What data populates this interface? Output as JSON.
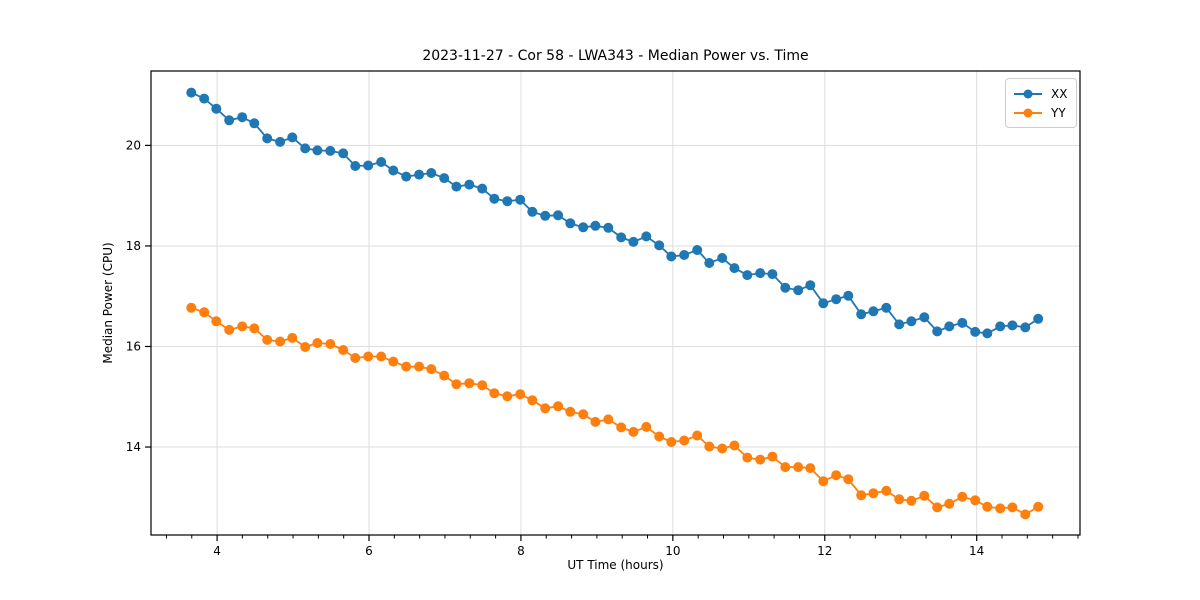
{
  "chart_data": {
    "type": "line",
    "title": "2023-11-27 - Cor 58 - LWA343 - Median Power vs. Time",
    "xlabel": "UT Time (hours)",
    "ylabel": "Median Power (CPU)",
    "x": [
      3.66,
      3.83,
      3.99,
      4.16,
      4.33,
      4.49,
      4.66,
      4.83,
      4.99,
      5.16,
      5.32,
      5.49,
      5.66,
      5.82,
      5.99,
      6.16,
      6.32,
      6.49,
      6.66,
      6.82,
      6.99,
      7.15,
      7.32,
      7.49,
      7.65,
      7.82,
      7.99,
      8.15,
      8.32,
      8.49,
      8.65,
      8.82,
      8.98,
      9.15,
      9.32,
      9.48,
      9.65,
      9.82,
      9.98,
      10.15,
      10.32,
      10.48,
      10.65,
      10.81,
      10.98,
      11.15,
      11.31,
      11.48,
      11.65,
      11.81,
      11.98,
      12.15,
      12.31,
      12.48,
      12.64,
      12.81,
      12.98,
      13.14,
      13.31,
      13.48,
      13.64,
      13.81,
      13.98,
      14.14,
      14.31,
      14.47,
      14.64,
      14.81
    ],
    "series": [
      {
        "name": "XX",
        "color": "#1f77b4",
        "values": [
          21.05,
          20.93,
          20.73,
          20.5,
          20.56,
          20.44,
          20.14,
          20.07,
          20.16,
          19.94,
          19.9,
          19.89,
          19.84,
          19.59,
          19.6,
          19.67,
          19.5,
          19.38,
          19.42,
          19.45,
          19.35,
          19.18,
          19.22,
          19.14,
          18.94,
          18.89,
          18.92,
          18.68,
          18.6,
          18.61,
          18.45,
          18.37,
          18.4,
          18.36,
          18.17,
          18.08,
          18.19,
          18.01,
          17.79,
          17.82,
          17.92,
          17.66,
          17.76,
          17.56,
          17.42,
          17.46,
          17.44,
          17.17,
          17.12,
          17.22,
          16.86,
          16.94,
          17.01,
          16.64,
          16.7,
          16.77,
          16.44,
          16.5,
          16.58,
          16.3,
          16.4,
          16.47,
          16.29,
          16.26,
          16.4,
          16.42,
          16.38,
          16.55
        ]
      },
      {
        "name": "YY",
        "color": "#ff7f0e",
        "values": [
          16.77,
          16.68,
          16.5,
          16.33,
          16.4,
          16.36,
          16.13,
          16.1,
          16.17,
          15.99,
          16.07,
          16.05,
          15.93,
          15.77,
          15.8,
          15.8,
          15.7,
          15.6,
          15.6,
          15.55,
          15.42,
          15.25,
          15.27,
          15.23,
          15.07,
          15.01,
          15.05,
          14.93,
          14.77,
          14.81,
          14.7,
          14.65,
          14.5,
          14.55,
          14.39,
          14.3,
          14.4,
          14.21,
          14.1,
          14.13,
          14.23,
          14.01,
          13.97,
          14.03,
          13.79,
          13.75,
          13.81,
          13.6,
          13.6,
          13.58,
          13.32,
          13.44,
          13.36,
          13.04,
          13.08,
          13.13,
          12.96,
          12.93,
          13.03,
          12.8,
          12.87,
          13.01,
          12.94,
          12.81,
          12.78,
          12.8,
          12.66,
          12.81
        ]
      }
    ],
    "xlim": [
      3.13,
      15.36
    ],
    "ylim": [
      12.25,
      21.48
    ],
    "xticks": [
      4,
      6,
      8,
      10,
      12,
      14
    ],
    "yticks": [
      14,
      16,
      18,
      20
    ],
    "x_minor_tick_step": 0.33333,
    "grid": "major, light gray, both axes",
    "legend_position": "upper right",
    "marker": "circle",
    "colors": {
      "grid": "#dddddd",
      "spine": "#000000",
      "text": "#000000"
    }
  }
}
